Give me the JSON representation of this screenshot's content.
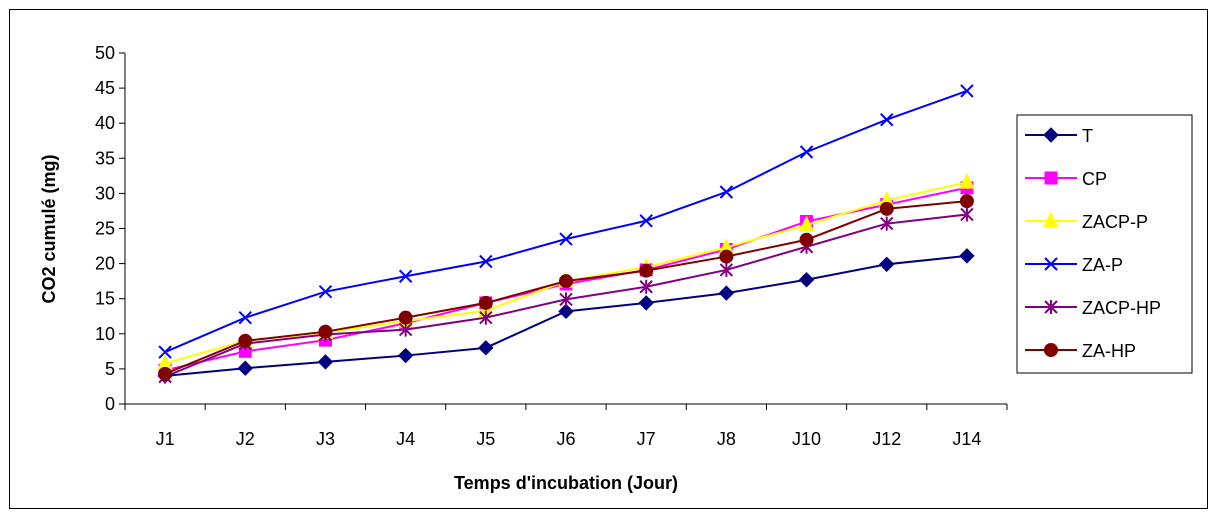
{
  "chart_data": {
    "type": "line",
    "title": "",
    "xlabel": "Temps d'incubation (Jour)",
    "ylabel": "CO2 cumulé (mg)",
    "ylim": [
      0,
      50
    ],
    "yticks": [
      0,
      5,
      10,
      15,
      20,
      25,
      30,
      35,
      40,
      45,
      50
    ],
    "grid": false,
    "legend_position": "right",
    "categories": [
      "J1",
      "J2",
      "J3",
      "J4",
      "J5",
      "J6",
      "J7",
      "J8",
      "J10",
      "J12",
      "J14"
    ],
    "series": [
      {
        "name": "T",
        "color": "#000080",
        "marker": "diamond",
        "values": [
          4.0,
          5.1,
          6.0,
          6.9,
          8.0,
          13.2,
          14.4,
          15.8,
          17.7,
          19.9,
          21.1
        ]
      },
      {
        "name": "CP",
        "color": "#FF00FF",
        "marker": "square",
        "values": [
          4.8,
          7.5,
          9.1,
          11.5,
          14.4,
          17.1,
          19.1,
          22.0,
          26.0,
          28.4,
          30.8
        ]
      },
      {
        "name": "ZACP-P",
        "color": "#FFFF00",
        "marker": "triangle",
        "values": [
          5.8,
          9.0,
          10.2,
          11.8,
          13.3,
          17.5,
          19.5,
          22.3,
          25.5,
          29.0,
          31.6
        ]
      },
      {
        "name": "ZA-P",
        "color": "#0000FF",
        "marker": "x",
        "values": [
          7.4,
          12.3,
          16.0,
          18.2,
          20.3,
          23.5,
          26.1,
          30.2,
          35.9,
          40.5,
          44.6
        ]
      },
      {
        "name": "ZACP-HP",
        "color": "#800080",
        "marker": "star",
        "values": [
          3.9,
          8.6,
          9.9,
          10.6,
          12.3,
          14.9,
          16.7,
          19.1,
          22.4,
          25.7,
          27.0
        ]
      },
      {
        "name": "ZA-HP",
        "color": "#800000",
        "marker": "circle",
        "values": [
          4.3,
          9.0,
          10.3,
          12.3,
          14.4,
          17.5,
          19.0,
          21.0,
          23.4,
          27.8,
          28.9
        ]
      }
    ]
  }
}
